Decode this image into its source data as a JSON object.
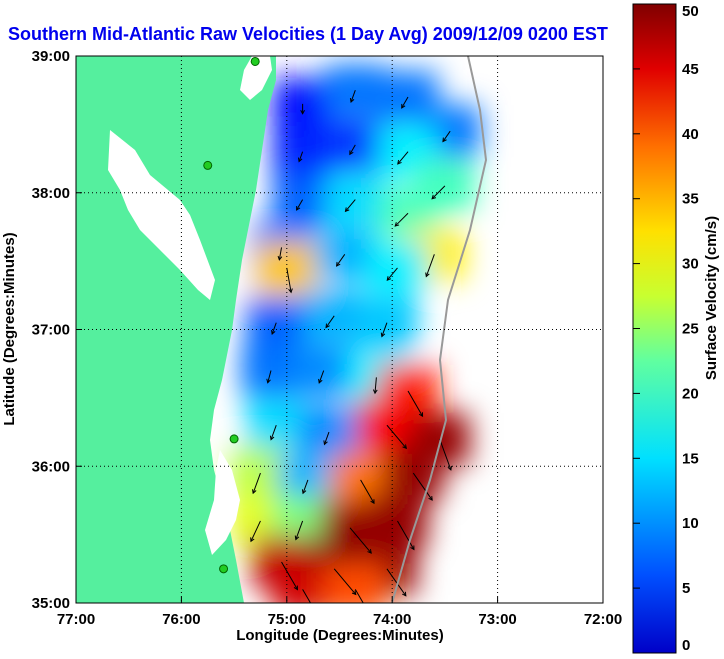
{
  "chart_data": {
    "type": "heatmap",
    "title": "Southern Mid-Atlantic Raw Velocities (1 Day Avg) 2009/12/09 0200 EST",
    "xlabel": "Longitude (Degrees:Minutes)",
    "ylabel": "Latitude (Degrees:Minutes)",
    "colorbar_label": "Surface Velocity (cm/s)",
    "x_range": [
      -77,
      -72
    ],
    "y_range": [
      35,
      39
    ],
    "x_ticks": [
      {
        "value": -77,
        "label": "77:00"
      },
      {
        "value": -76,
        "label": "76:00"
      },
      {
        "value": -75,
        "label": "75:00"
      },
      {
        "value": -74,
        "label": "74:00"
      },
      {
        "value": -73,
        "label": "73:00"
      },
      {
        "value": -72,
        "label": "72:00"
      }
    ],
    "y_ticks": [
      {
        "value": 35,
        "label": "35:00"
      },
      {
        "value": 36,
        "label": "36:00"
      },
      {
        "value": 37,
        "label": "37:00"
      },
      {
        "value": 38,
        "label": "38:00"
      },
      {
        "value": 39,
        "label": "39:00"
      }
    ],
    "grid": "dotted",
    "colorbar_range": [
      0,
      50
    ],
    "colorbar_ticks": [
      {
        "value": 0,
        "label": "0"
      },
      {
        "value": 5,
        "label": "5"
      },
      {
        "value": 10,
        "label": "10"
      },
      {
        "value": 15,
        "label": "15"
      },
      {
        "value": 20,
        "label": "20"
      },
      {
        "value": 25,
        "label": "25"
      },
      {
        "value": 30,
        "label": "30"
      },
      {
        "value": 35,
        "label": "35"
      },
      {
        "value": 40,
        "label": "40"
      },
      {
        "value": 45,
        "label": "45"
      },
      {
        "value": 50,
        "label": "50"
      }
    ],
    "colorscale": "jet",
    "colors": {
      "title": "#0000ee",
      "land": "#55ef9e",
      "water": "#ffffff",
      "arrows": "#000000",
      "stations": "#22cc22",
      "frame": "#000000"
    },
    "velocity_field": [
      {
        "lon": -74.85,
        "lat": 38.65,
        "speed": 7,
        "dir_deg": 180
      },
      {
        "lon": -74.35,
        "lat": 38.75,
        "speed": 12,
        "dir_deg": 200
      },
      {
        "lon": -73.85,
        "lat": 38.7,
        "speed": 12,
        "dir_deg": 210
      },
      {
        "lon": -73.45,
        "lat": 38.45,
        "speed": 12,
        "dir_deg": 215
      },
      {
        "lon": -74.85,
        "lat": 38.3,
        "speed": 8,
        "dir_deg": 200
      },
      {
        "lon": -74.35,
        "lat": 38.35,
        "speed": 9,
        "dir_deg": 210
      },
      {
        "lon": -73.85,
        "lat": 38.3,
        "speed": 18,
        "dir_deg": 220
      },
      {
        "lon": -73.5,
        "lat": 38.05,
        "speed": 22,
        "dir_deg": 225
      },
      {
        "lon": -74.85,
        "lat": 37.95,
        "speed": 11,
        "dir_deg": 210
      },
      {
        "lon": -74.35,
        "lat": 37.95,
        "speed": 17,
        "dir_deg": 220
      },
      {
        "lon": -73.85,
        "lat": 37.85,
        "speed": 22,
        "dir_deg": 225
      },
      {
        "lon": -73.6,
        "lat": 37.55,
        "speed": 32,
        "dir_deg": 200
      },
      {
        "lon": -75.05,
        "lat": 37.6,
        "speed": 12,
        "dir_deg": 190
      },
      {
        "lon": -75.0,
        "lat": 37.45,
        "speed": 34,
        "dir_deg": 170
      },
      {
        "lon": -74.45,
        "lat": 37.55,
        "speed": 15,
        "dir_deg": 215
      },
      {
        "lon": -73.95,
        "lat": 37.45,
        "speed": 18,
        "dir_deg": 220
      },
      {
        "lon": -75.1,
        "lat": 37.05,
        "speed": 11,
        "dir_deg": 200
      },
      {
        "lon": -74.55,
        "lat": 37.1,
        "speed": 15,
        "dir_deg": 215
      },
      {
        "lon": -74.05,
        "lat": 37.05,
        "speed": 16,
        "dir_deg": 200
      },
      {
        "lon": -75.15,
        "lat": 36.7,
        "speed": 12,
        "dir_deg": 195
      },
      {
        "lon": -74.65,
        "lat": 36.7,
        "speed": 13,
        "dir_deg": 200
      },
      {
        "lon": -74.15,
        "lat": 36.65,
        "speed": 18,
        "dir_deg": 185
      },
      {
        "lon": -73.85,
        "lat": 36.55,
        "speed": 42,
        "dir_deg": 150
      },
      {
        "lon": -75.1,
        "lat": 36.3,
        "speed": 17,
        "dir_deg": 200
      },
      {
        "lon": -74.6,
        "lat": 36.25,
        "speed": 13,
        "dir_deg": 200
      },
      {
        "lon": -74.05,
        "lat": 36.3,
        "speed": 44,
        "dir_deg": 140
      },
      {
        "lon": -73.55,
        "lat": 36.2,
        "speed": 49,
        "dir_deg": 160
      },
      {
        "lon": -75.25,
        "lat": 35.95,
        "speed": 28,
        "dir_deg": 200
      },
      {
        "lon": -74.8,
        "lat": 35.9,
        "speed": 15,
        "dir_deg": 200
      },
      {
        "lon": -74.3,
        "lat": 35.9,
        "speed": 38,
        "dir_deg": 150
      },
      {
        "lon": -73.8,
        "lat": 35.95,
        "speed": 49,
        "dir_deg": 145
      },
      {
        "lon": -75.25,
        "lat": 35.6,
        "speed": 30,
        "dir_deg": 205
      },
      {
        "lon": -74.85,
        "lat": 35.6,
        "speed": 25,
        "dir_deg": 200
      },
      {
        "lon": -74.4,
        "lat": 35.55,
        "speed": 49,
        "dir_deg": 140
      },
      {
        "lon": -73.95,
        "lat": 35.6,
        "speed": 49,
        "dir_deg": 150
      },
      {
        "lon": -75.05,
        "lat": 35.3,
        "speed": 47,
        "dir_deg": 150
      },
      {
        "lon": -74.55,
        "lat": 35.25,
        "speed": 50,
        "dir_deg": 140
      },
      {
        "lon": -74.05,
        "lat": 35.25,
        "speed": 49,
        "dir_deg": 145
      },
      {
        "lon": -74.85,
        "lat": 35.1,
        "speed": 46,
        "dir_deg": 150
      },
      {
        "lon": -74.35,
        "lat": 35.1,
        "speed": 40,
        "dir_deg": 150
      }
    ]
  }
}
